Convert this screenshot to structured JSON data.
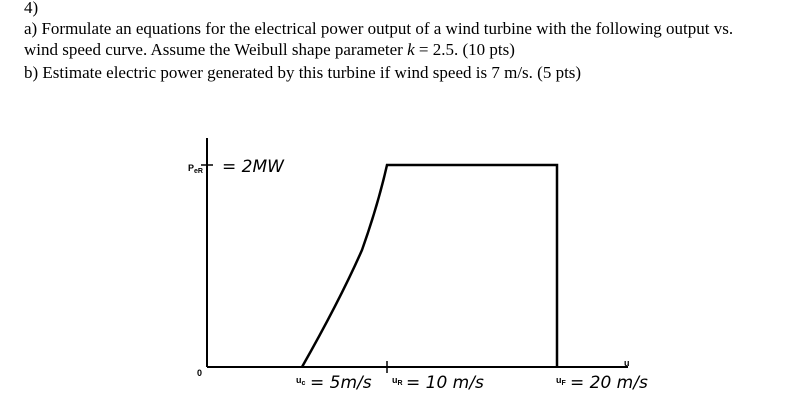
{
  "question": {
    "number": "4)",
    "part_a": {
      "line1": "a) Formulate an equations for the electrical power output of a wind turbine with the following output vs.",
      "line2_start": "wind speed curve. Assume the Weibull shape parameter ",
      "variable": "k",
      "line2_end": " = 2.5. (10 pts)"
    },
    "part_b": "b) Estimate electric power generated by this turbine if wind speed is 7 m/s. (5 pts)"
  },
  "diagram": {
    "y_label": {
      "symbol": "P",
      "subscript": "eR",
      "note": "= 2MW"
    },
    "origin": "0",
    "x_label": "u",
    "cut_in": {
      "symbol": "u",
      "subscript": "c",
      "note": "= 5m/s"
    },
    "rated": {
      "symbol": "u",
      "subscript": "R",
      "note": "= 10 m/s"
    },
    "cut_out": {
      "symbol": "u",
      "subscript": "F",
      "note": "= 20 m/s"
    }
  }
}
